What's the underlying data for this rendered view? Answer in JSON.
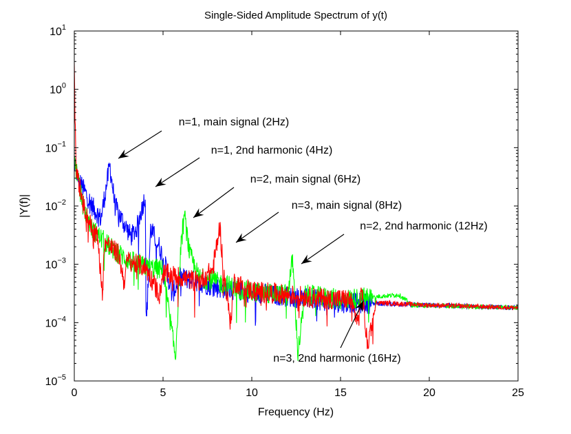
{
  "chart_data": {
    "type": "line",
    "title": "Single-Sided Amplitude Spectrum of y(t)",
    "xlabel": "Frequency (Hz)",
    "ylabel": "|Y(f)|",
    "xlim": [
      0,
      25
    ],
    "ylim": [
      1e-05,
      10
    ],
    "yscale": "log",
    "grid": false,
    "x_ticks": [
      "0",
      "5",
      "10",
      "15",
      "20",
      "25"
    ],
    "y_ticks": [
      {
        "base": "10",
        "exp": "1"
      },
      {
        "base": "10",
        "exp": "0"
      },
      {
        "base": "10",
        "exp": "−1"
      },
      {
        "base": "10",
        "exp": "−2"
      },
      {
        "base": "10",
        "exp": "−3"
      },
      {
        "base": "10",
        "exp": "−4"
      },
      {
        "base": "10",
        "exp": "−5"
      }
    ],
    "series": [
      {
        "name": "n=1",
        "color": "#0000ff",
        "points": [
          [
            0,
            0.05
          ],
          [
            0.2,
            0.03
          ],
          [
            0.5,
            0.02
          ],
          [
            1,
            0.01
          ],
          [
            1.5,
            0.006
          ],
          [
            2,
            0.05
          ],
          [
            2.3,
            0.01
          ],
          [
            2.8,
            0.005
          ],
          [
            3.2,
            0.003
          ],
          [
            3.5,
            0.004
          ],
          [
            4,
            0.015
          ],
          [
            4.05,
            8e-05
          ],
          [
            4.3,
            0.004
          ],
          [
            4.8,
            0.002
          ],
          [
            5.2,
            0.0008
          ],
          [
            5.5,
            0.0003
          ],
          [
            6,
            0.0006
          ],
          [
            7,
            0.0005
          ],
          [
            8,
            0.0004
          ],
          [
            10,
            0.00033
          ],
          [
            15,
            0.00022
          ],
          [
            20,
            0.0002
          ],
          [
            25,
            0.00018
          ]
        ]
      },
      {
        "name": "n=2",
        "color": "#00ff00",
        "points": [
          [
            0,
            0.06
          ],
          [
            0.5,
            0.01
          ],
          [
            1,
            0.004
          ],
          [
            2,
            0.002
          ],
          [
            3,
            0.0012
          ],
          [
            4,
            0.0009
          ],
          [
            5,
            0.0008
          ],
          [
            5.7,
            2.5e-05
          ],
          [
            6,
            0.002
          ],
          [
            6.2,
            0.007
          ],
          [
            6.5,
            0.0015
          ],
          [
            7,
            0.0006
          ],
          [
            8,
            0.0005
          ],
          [
            9,
            0.0004
          ],
          [
            10,
            0.00033
          ],
          [
            12,
            0.0003
          ],
          [
            12.3,
            0.0012
          ],
          [
            12.6,
            3e-05
          ],
          [
            13,
            0.0003
          ],
          [
            15,
            0.00025
          ],
          [
            18.3,
            0.0003
          ],
          [
            19,
            0.0002
          ],
          [
            25,
            0.00018
          ]
        ]
      },
      {
        "name": "n=3",
        "color": "#ff0000",
        "points": [
          [
            0,
            2
          ],
          [
            0.05,
            0.3
          ],
          [
            0.1,
            0.05
          ],
          [
            0.2,
            0.03
          ],
          [
            0.4,
            0.015
          ],
          [
            0.6,
            0.008
          ],
          [
            0.8,
            0.006
          ],
          [
            1,
            0.004
          ],
          [
            1.3,
            0.003
          ],
          [
            1.6,
            0.0003
          ],
          [
            1.7,
            0.0025
          ],
          [
            2,
            0.002
          ],
          [
            2.5,
            0.0015
          ],
          [
            2.8,
            0.0005
          ],
          [
            3,
            0.0012
          ],
          [
            3.5,
            0.001
          ],
          [
            4,
            0.0009
          ],
          [
            4.8,
            0.0003
          ],
          [
            5,
            0.0007
          ],
          [
            6,
            0.0006
          ],
          [
            7,
            0.0005
          ],
          [
            7.8,
            0.0008
          ],
          [
            8.2,
            0.0045
          ],
          [
            8.4,
            0.0008
          ],
          [
            8.8,
            0.0001
          ],
          [
            9,
            0.0005
          ],
          [
            10,
            0.00035
          ],
          [
            12,
            0.0003
          ],
          [
            14,
            0.00026
          ],
          [
            15.5,
            0.00025
          ],
          [
            16,
            0.0001
          ],
          [
            16.2,
            0.0004
          ],
          [
            16.5,
            4e-05
          ],
          [
            17,
            0.00022
          ],
          [
            20,
            0.0002
          ],
          [
            25,
            0.00018
          ]
        ]
      }
    ],
    "annotations": [
      {
        "text": "n=1, main signal (2Hz)"
      },
      {
        "text": "n=1, 2nd harmonic (4Hz)"
      },
      {
        "text": "n=2, main signal (6Hz)"
      },
      {
        "text": "n=3, main signal (8Hz)"
      },
      {
        "text": "n=2, 2nd harmonic (12Hz)"
      },
      {
        "text": "n=3, 2nd harmonic (16Hz)"
      }
    ]
  }
}
